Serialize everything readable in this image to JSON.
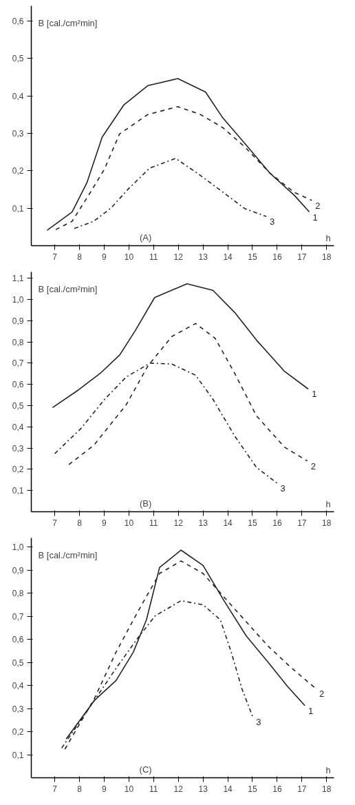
{
  "chart_data": [
    {
      "type": "line",
      "ylabel": "B [cal./cm²min]",
      "xlabel": "h",
      "annotations": [
        "(A)"
      ],
      "xlim": [
        6.05,
        18.3
      ],
      "ylim": [
        0,
        0.64
      ],
      "xticks": [
        7,
        8,
        9,
        10,
        11,
        12,
        13,
        14,
        15,
        16,
        17,
        18
      ],
      "yticks": [
        {
          "value": 0.1,
          "label": "0,1"
        },
        {
          "value": 0.2,
          "label": "0,2"
        },
        {
          "value": 0.3,
          "label": "0,3"
        },
        {
          "value": 0.4,
          "label": "0,4"
        },
        {
          "value": 0.5,
          "label": "0,5"
        },
        {
          "value": 0.6,
          "label": "0,6"
        }
      ],
      "grid": false,
      "marker": "none",
      "series": [
        {
          "name": "1",
          "color": "#222222",
          "line_style": "solid",
          "x": [
            6.69,
            7.7,
            8.3,
            8.92,
            9.8,
            10.76,
            11.98,
            13.1,
            13.8,
            14.7,
            15.7,
            16.7,
            17.3
          ],
          "values": [
            0.041,
            0.09,
            0.168,
            0.29,
            0.376,
            0.427,
            0.446,
            0.41,
            0.341,
            0.272,
            0.194,
            0.134,
            0.09
          ]
        },
        {
          "name": "2",
          "color": "#222222",
          "line_style": "dashed",
          "x": [
            7.04,
            7.7,
            8.4,
            9.0,
            9.62,
            10.76,
            11.98,
            12.9,
            13.8,
            14.7,
            15.7,
            16.7,
            17.4
          ],
          "values": [
            0.043,
            0.065,
            0.138,
            0.203,
            0.298,
            0.35,
            0.371,
            0.35,
            0.315,
            0.263,
            0.194,
            0.142,
            0.121
          ]
        },
        {
          "name": "3",
          "color": "#222222",
          "line_style": "dashdot",
          "x": [
            7.79,
            8.57,
            9.27,
            9.97,
            10.84,
            11.89,
            12.76,
            13.64,
            14.69,
            15.56
          ],
          "values": [
            0.046,
            0.065,
            0.1,
            0.151,
            0.207,
            0.233,
            0.194,
            0.151,
            0.099,
            0.078
          ]
        }
      ]
    },
    {
      "type": "line",
      "ylabel": "B [cal./cm²min]",
      "xlabel": "h",
      "annotations": [
        "(B)"
      ],
      "xlim": [
        6.05,
        18.3
      ],
      "ylim": [
        0,
        1.13
      ],
      "xticks": [
        7,
        8,
        9,
        10,
        11,
        12,
        13,
        14,
        15,
        16,
        17,
        18
      ],
      "yticks": [
        {
          "value": 0.1,
          "label": "0,1"
        },
        {
          "value": 0.2,
          "label": "0,2"
        },
        {
          "value": 0.3,
          "label": "0,3"
        },
        {
          "value": 0.4,
          "label": "0,4"
        },
        {
          "value": 0.5,
          "label": "0,5"
        },
        {
          "value": 0.6,
          "label": "0,6"
        },
        {
          "value": 0.7,
          "label": "0,7"
        },
        {
          "value": 0.8,
          "label": "0,8"
        },
        {
          "value": 0.9,
          "label": "0,9"
        },
        {
          "value": 1.0,
          "label": "1,0"
        },
        {
          "value": 1.1,
          "label": "1,1"
        }
      ],
      "grid": false,
      "marker": "none",
      "series": [
        {
          "name": "1",
          "color": "#222222",
          "line_style": "solid",
          "x": [
            6.91,
            7.96,
            8.84,
            9.63,
            10.25,
            11.04,
            12.35,
            13.4,
            14.28,
            15.16,
            16.3,
            17.26
          ],
          "values": [
            0.491,
            0.574,
            0.652,
            0.739,
            0.852,
            1.009,
            1.074,
            1.043,
            0.939,
            0.809,
            0.661,
            0.578
          ]
        },
        {
          "name": "2",
          "color": "#222222",
          "line_style": "dashed",
          "x": [
            7.57,
            8.58,
            9.89,
            10.77,
            11.74,
            12.7,
            13.49,
            14.28,
            15.16,
            16.3,
            17.22
          ],
          "values": [
            0.222,
            0.313,
            0.504,
            0.687,
            0.826,
            0.887,
            0.817,
            0.652,
            0.452,
            0.304,
            0.239
          ]
        },
        {
          "name": "3",
          "color": "#222222",
          "line_style": "dashdot",
          "x": [
            7.0,
            8.05,
            9.02,
            9.89,
            10.86,
            11.74,
            12.7,
            13.4,
            14.28,
            15.16,
            15.99
          ],
          "values": [
            0.274,
            0.391,
            0.53,
            0.635,
            0.7,
            0.696,
            0.643,
            0.53,
            0.357,
            0.209,
            0.135
          ]
        }
      ]
    },
    {
      "type": "line",
      "ylabel": "B [cal./cm²min]",
      "xlabel": "h",
      "annotations": [
        "(C)"
      ],
      "xlim": [
        6.05,
        18.3
      ],
      "ylim": [
        0,
        1.04
      ],
      "xticks": [
        7,
        8,
        9,
        10,
        11,
        12,
        13,
        14,
        15,
        16,
        17,
        18
      ],
      "yticks": [
        {
          "value": 0.1,
          "label": "0,1"
        },
        {
          "value": 0.2,
          "label": "0,2"
        },
        {
          "value": 0.3,
          "label": "0,3"
        },
        {
          "value": 0.4,
          "label": "0,4"
        },
        {
          "value": 0.5,
          "label": "0,5"
        },
        {
          "value": 0.6,
          "label": "0,6"
        },
        {
          "value": 0.7,
          "label": "0,7"
        },
        {
          "value": 0.8,
          "label": "0,8"
        },
        {
          "value": 0.9,
          "label": "0,9"
        },
        {
          "value": 1.0,
          "label": "1,0"
        }
      ],
      "grid": false,
      "marker": "none",
      "series": [
        {
          "name": "1",
          "color": "#222222",
          "line_style": "solid",
          "x": [
            7.46,
            8.6,
            9.48,
            10.18,
            10.71,
            11.24,
            12.11,
            13.0,
            13.87,
            14.75,
            15.63,
            16.42,
            17.12
          ],
          "values": [
            0.168,
            0.335,
            0.422,
            0.545,
            0.685,
            0.912,
            0.987,
            0.921,
            0.764,
            0.615,
            0.501,
            0.396,
            0.313
          ]
        },
        {
          "name": "2",
          "color": "#222222",
          "line_style": "dashed",
          "x": [
            7.41,
            8.6,
            9.48,
            10.36,
            11.24,
            12.11,
            13.0,
            13.87,
            14.75,
            15.63,
            16.51,
            17.56
          ],
          "values": [
            0.124,
            0.343,
            0.545,
            0.72,
            0.886,
            0.94,
            0.886,
            0.781,
            0.676,
            0.571,
            0.483,
            0.387
          ]
        },
        {
          "name": "3",
          "color": "#222222",
          "line_style": "dashdot",
          "x": [
            7.28,
            8.6,
            9.48,
            10.36,
            11.06,
            12.11,
            13.0,
            13.7,
            14.14,
            14.57,
            15.01
          ],
          "values": [
            0.129,
            0.335,
            0.475,
            0.606,
            0.702,
            0.768,
            0.75,
            0.685,
            0.545,
            0.387,
            0.264
          ]
        }
      ]
    }
  ]
}
